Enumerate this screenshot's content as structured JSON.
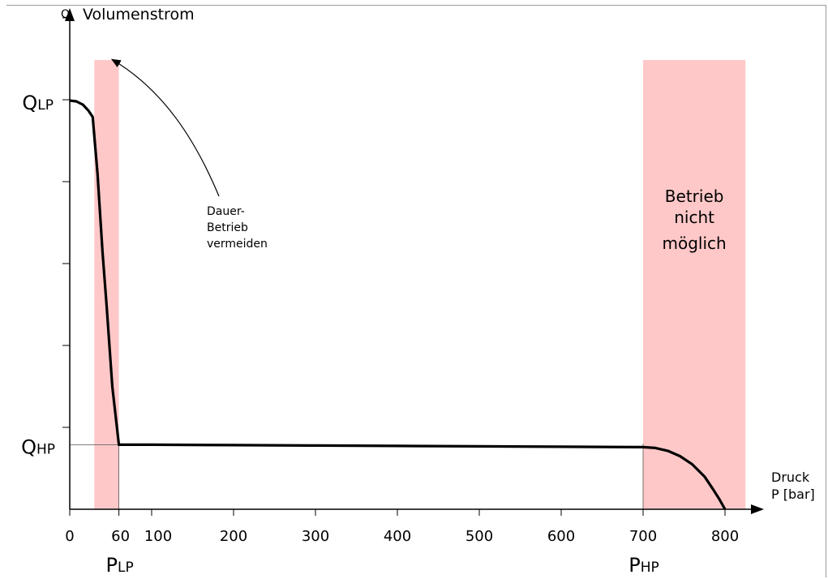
{
  "chart_data": {
    "type": "line",
    "title": "",
    "ylabel_symbol": "Q",
    "ylabel": "Volumenstrom",
    "xlabel_line1": "Druck",
    "xlabel_line2": "P [bar]",
    "xlim": [
      0,
      850
    ],
    "x_ticks": [
      0,
      60,
      100,
      200,
      300,
      400,
      500,
      600,
      700,
      800
    ],
    "x_tick_labels": [
      "0",
      "60",
      "100",
      "200",
      "300",
      "400",
      "500",
      "600",
      "700",
      "800"
    ],
    "y_level_labels": [
      {
        "main": "Q",
        "sub": "LP",
        "value": 1.0
      },
      {
        "main": "Q",
        "sub": "HP",
        "value": 0.158
      }
    ],
    "y_ticks_count": 6,
    "x_marker_labels": [
      {
        "main": "P",
        "sub": "LP",
        "value": 60
      },
      {
        "main": "P",
        "sub": "HP",
        "value": 700
      }
    ],
    "series": [
      {
        "x": [
          0,
          8,
          16,
          23,
          28,
          34,
          40,
          45,
          52,
          60,
          100,
          200,
          300,
          400,
          500,
          600,
          700,
          715,
          730,
          745,
          760,
          775,
          785,
          793,
          800
        ],
        "y": [
          1.0,
          0.998,
          0.99,
          0.975,
          0.96,
          0.82,
          0.63,
          0.5,
          0.3,
          0.158,
          0.158,
          0.157,
          0.156,
          0.155,
          0.154,
          0.153,
          0.152,
          0.15,
          0.143,
          0.13,
          0.11,
          0.08,
          0.05,
          0.025,
          0.0
        ]
      }
    ],
    "shaded_regions": [
      {
        "x_start": 30,
        "x_end": 60,
        "color": "#ffc8c8"
      },
      {
        "x_start": 700,
        "x_end": 825,
        "color": "#ffc8c8",
        "label": [
          "Betrieb",
          "nicht",
          "möglich"
        ]
      }
    ],
    "annotation": {
      "text": [
        "Dauer-",
        "Betrieb",
        "vermeiden"
      ],
      "arrow_target_x": 60,
      "arrow_target_y": 1.1
    },
    "colors": {
      "shade": "#ffc8c8",
      "line": "#000000"
    },
    "grid": false
  }
}
